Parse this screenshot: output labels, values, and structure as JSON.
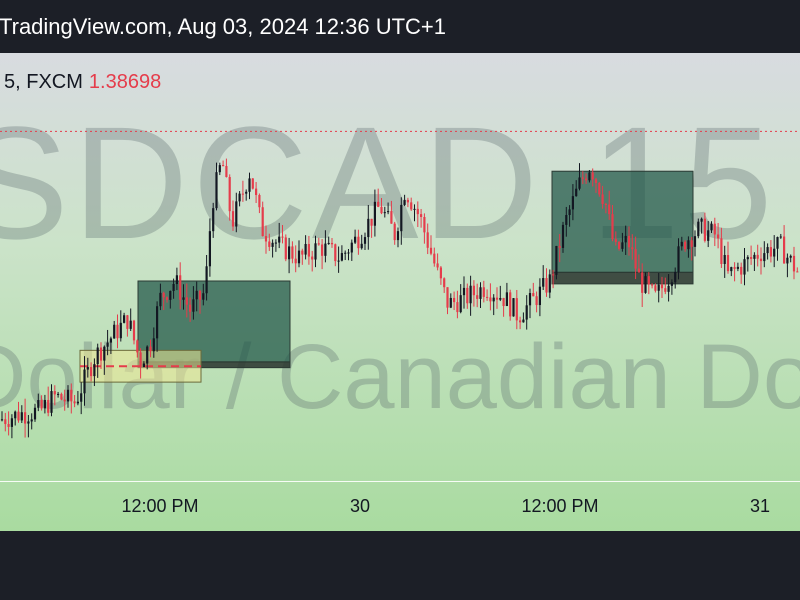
{
  "header": {
    "caption": "TradingView.com, Aug 03, 2024 12:36 UTC+1"
  },
  "symbol_bar": {
    "label": "5, FXCM",
    "price": "1.38698",
    "price_color": "#e53c4b"
  },
  "watermark": {
    "symbol": "SDCAD 15",
    "description": "Dollar / Canadian Do"
  },
  "colors": {
    "up": "#131722",
    "down": "#e53c4b",
    "zone_fill": "#2f5e52",
    "price_line": "#e53c4b"
  },
  "chart_data": {
    "type": "candlestick",
    "xlabel": "",
    "ylabel": "",
    "x_ticks": [
      "12:00 PM",
      "30",
      "12:00 PM",
      "31"
    ],
    "current_price": 1.38698,
    "ylim": [
      1.3755,
      1.389
    ],
    "price_path": [
      [
        0,
        1.377
      ],
      [
        20,
        1.3772
      ],
      [
        40,
        1.3773
      ],
      [
        55,
        1.3778
      ],
      [
        75,
        1.3776
      ],
      [
        95,
        1.3792
      ],
      [
        115,
        1.38
      ],
      [
        128,
        1.3805
      ],
      [
        140,
        1.379
      ],
      [
        150,
        1.3796
      ],
      [
        160,
        1.3812
      ],
      [
        175,
        1.3818
      ],
      [
        190,
        1.3808
      ],
      [
        205,
        1.3814
      ],
      [
        212,
        1.3845
      ],
      [
        222,
        1.386
      ],
      [
        232,
        1.3838
      ],
      [
        250,
        1.3856
      ],
      [
        262,
        1.3836
      ],
      [
        280,
        1.383
      ],
      [
        300,
        1.3826
      ],
      [
        320,
        1.383
      ],
      [
        340,
        1.3826
      ],
      [
        360,
        1.3834
      ],
      [
        380,
        1.3844
      ],
      [
        395,
        1.3834
      ],
      [
        405,
        1.385
      ],
      [
        420,
        1.384
      ],
      [
        438,
        1.382
      ],
      [
        448,
        1.381
      ],
      [
        465,
        1.3812
      ],
      [
        485,
        1.3816
      ],
      [
        505,
        1.3812
      ],
      [
        518,
        1.3806
      ],
      [
        535,
        1.3812
      ],
      [
        550,
        1.3818
      ],
      [
        565,
        1.3838
      ],
      [
        580,
        1.3852
      ],
      [
        590,
        1.3858
      ],
      [
        605,
        1.3846
      ],
      [
        615,
        1.3828
      ],
      [
        628,
        1.3832
      ],
      [
        640,
        1.3818
      ],
      [
        655,
        1.3812
      ],
      [
        670,
        1.382
      ],
      [
        685,
        1.3832
      ],
      [
        700,
        1.3836
      ],
      [
        715,
        1.3834
      ],
      [
        728,
        1.382
      ],
      [
        745,
        1.3824
      ],
      [
        760,
        1.3828
      ],
      [
        780,
        1.383
      ],
      [
        800,
        1.382
      ]
    ],
    "zones": [
      {
        "x1": 138,
        "x2": 290,
        "top": 1.3818,
        "bottom": 1.379,
        "style": "green"
      },
      {
        "x1": 138,
        "x2": 290,
        "top": 1.379,
        "bottom": 1.3788,
        "style": "dark"
      },
      {
        "x1": 80,
        "x2": 201,
        "top": 1.3794,
        "bottom": 1.3783,
        "style": "yellow"
      },
      {
        "x1": 552,
        "x2": 693,
        "top": 1.3856,
        "bottom": 1.3821,
        "style": "green"
      },
      {
        "x1": 552,
        "x2": 693,
        "top": 1.3821,
        "bottom": 1.3817,
        "style": "dark"
      }
    ]
  }
}
